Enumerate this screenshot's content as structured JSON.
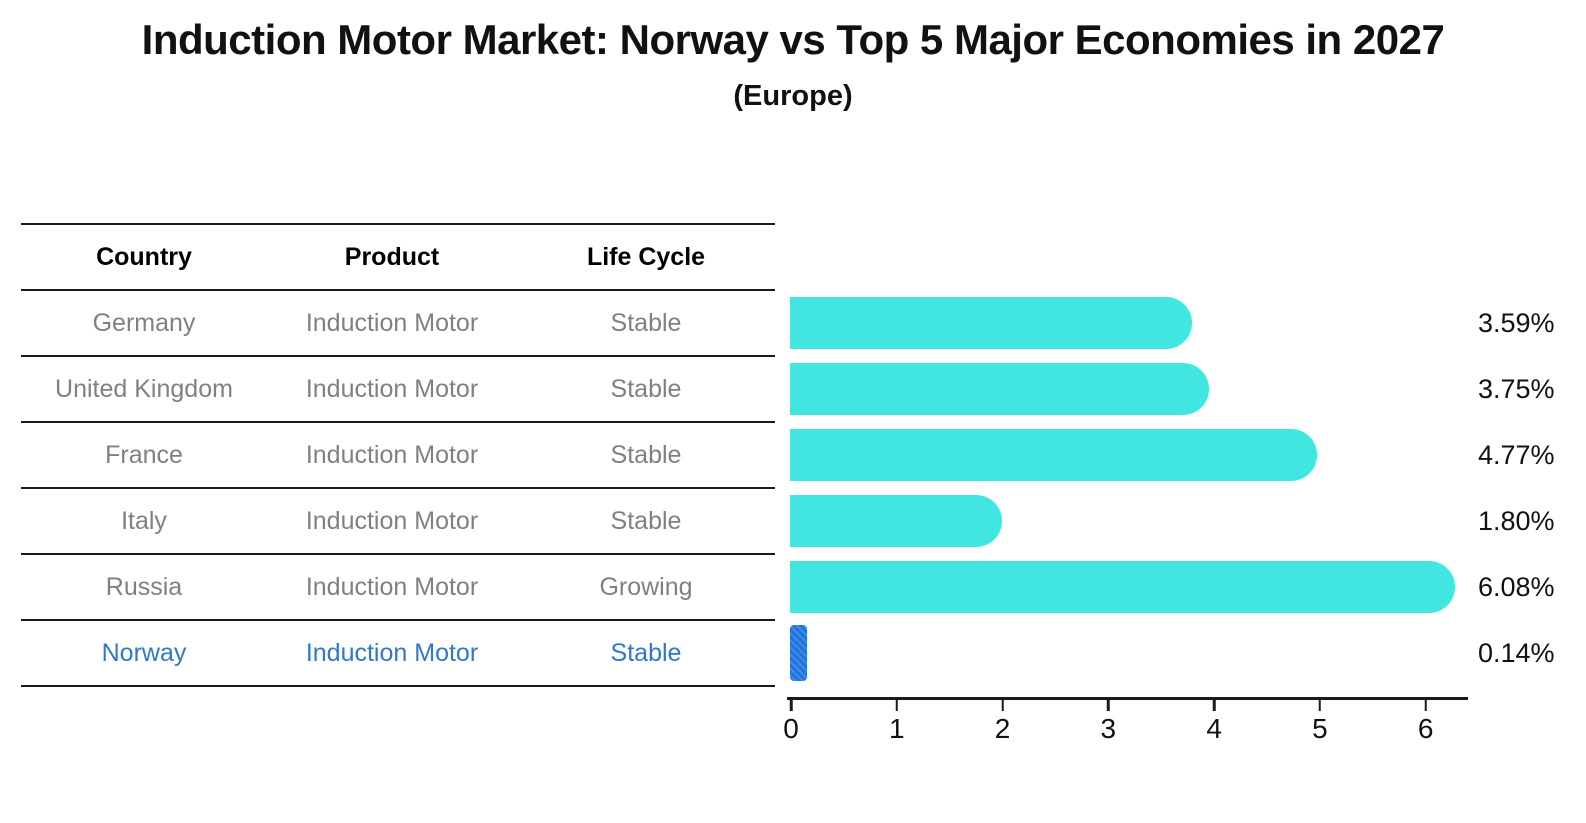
{
  "title": "Induction Motor Market: Norway vs Top 5 Major Economies in 2027",
  "subtitle": "(Europe)",
  "table": {
    "headers": [
      "Country",
      "Product",
      "Life Cycle"
    ],
    "rows": [
      {
        "country": "Germany",
        "product": "Induction Motor",
        "life_cycle": "Stable",
        "highlight": false
      },
      {
        "country": "United Kingdom",
        "product": "Induction Motor",
        "life_cycle": "Stable",
        "highlight": false
      },
      {
        "country": "France",
        "product": "Induction Motor",
        "life_cycle": "Stable",
        "highlight": false
      },
      {
        "country": "Italy",
        "product": "Induction Motor",
        "life_cycle": "Stable",
        "highlight": false
      },
      {
        "country": "Russia",
        "product": "Induction Motor",
        "life_cycle": "Growing",
        "highlight": false
      },
      {
        "country": "Norway",
        "product": "Induction Motor",
        "life_cycle": "Stable",
        "highlight": true
      }
    ]
  },
  "chart_data": {
    "type": "bar",
    "orientation": "horizontal",
    "title": "Induction Motor Market: Norway vs Top 5 Major Economies in 2027",
    "subtitle": "(Europe)",
    "categories": [
      "Germany",
      "United Kingdom",
      "France",
      "Italy",
      "Russia",
      "Norway"
    ],
    "values": [
      3.59,
      3.75,
      4.77,
      1.8,
      6.08,
      0.14
    ],
    "value_labels": [
      "3.59%",
      "3.75%",
      "4.77%",
      "1.80%",
      "6.08%",
      "0.14%"
    ],
    "xlim": [
      0,
      6.4
    ],
    "x_ticks": [
      0,
      1,
      2,
      3,
      4,
      5,
      6
    ],
    "grid": false,
    "legend": "none",
    "bar_color": "#41E6E0",
    "highlight_bar_color": "#2273DB",
    "highlight_index": 5
  },
  "colors": {
    "body_text": "#808080",
    "header_text": "#000000",
    "highlight_text": "#2E77D5",
    "axis": "#1a1a1a"
  }
}
